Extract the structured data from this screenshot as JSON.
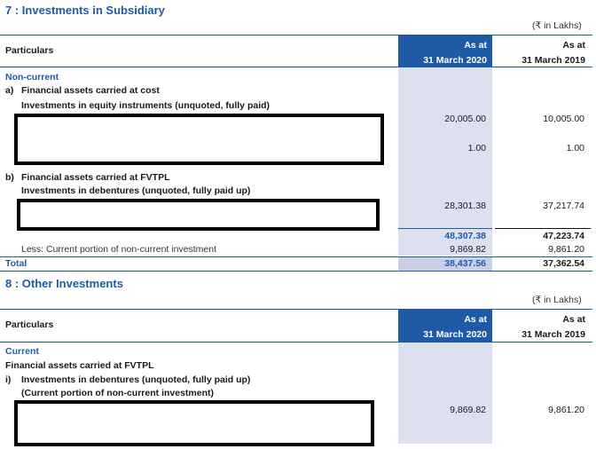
{
  "units": "(₹ in Lakhs)",
  "col_as_at": "As at",
  "col_2020": "31 March 2020",
  "col_2019": "31 March 2019",
  "particulars": "Particulars",
  "note7": {
    "title": "7 : Investments in Subsidiary",
    "noncurrent": "Non-current",
    "a_label": "a)",
    "a_text": "Financial assets carried at cost",
    "a_sub": "Investments in equity instruments (unquoted, fully paid)",
    "row1_2020": "20,005.00",
    "row1_2019": "10,005.00",
    "row2_2020": "1.00",
    "row2_2019": "1.00",
    "b_label": "b)",
    "b_text": "Financial assets carried at FVTPL",
    "b_sub": "Investments in debentures (unquoted, fully paid up)",
    "row3_2020": "28,301.38",
    "row3_2019": "37,217.74",
    "subtotal_2020": "48,307.38",
    "subtotal_2019": "47,223.74",
    "less_label": "Less:  Current portion of non-current investment",
    "less_2020": "9,869.82",
    "less_2019": "9,861.20",
    "total_label": "Total",
    "total_2020": "38,437.56",
    "total_2019": "37,362.54"
  },
  "note8": {
    "title": "8 : Other Investments",
    "current": "Current",
    "fa_text": "Financial assets carried at FVTPL",
    "i_label": "i)",
    "i_text": "Investments in debentures (unquoted, fully paid up)",
    "i_sub": "(Current portion of non-current investment)",
    "row1_2020": "9,869.82",
    "row1_2019": "9,861.20"
  }
}
